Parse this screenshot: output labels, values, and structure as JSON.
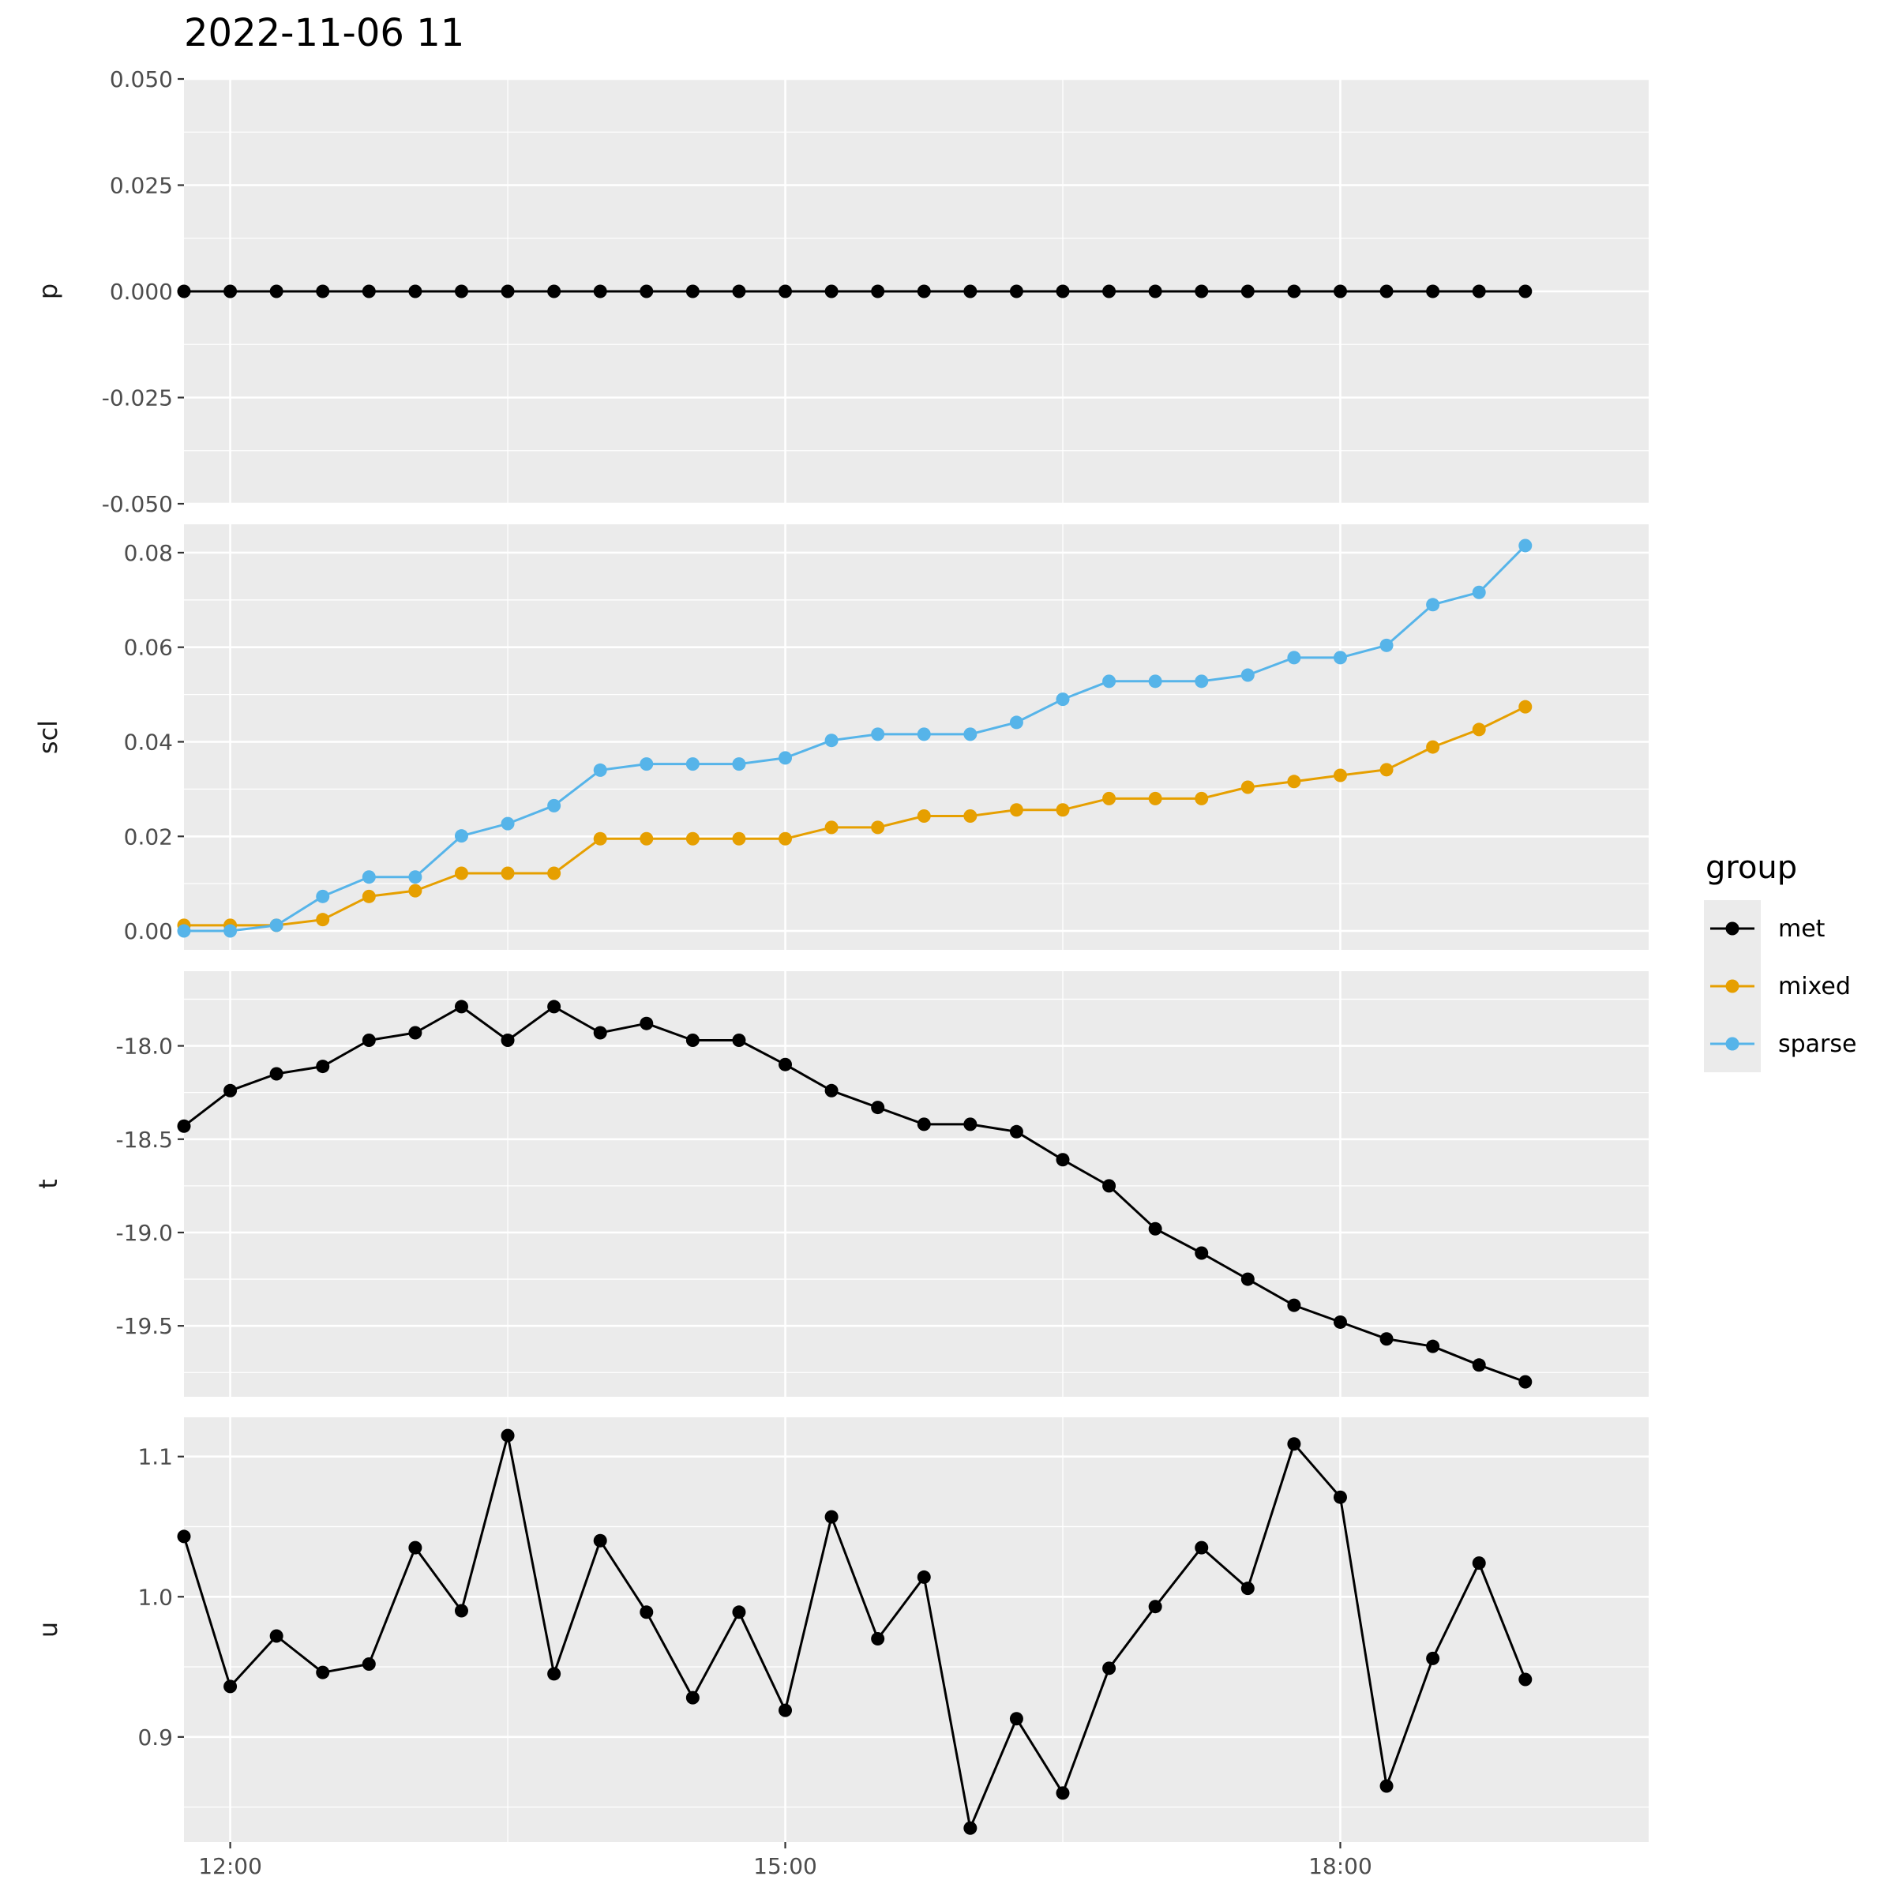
{
  "chart_data": {
    "type": "line",
    "title": "2022-11-06 11",
    "x_axis": {
      "unit": "time",
      "range": [
        "11:45",
        "19:40"
      ],
      "ticks": [
        "12:00",
        "15:00",
        "18:00"
      ]
    },
    "x": [
      "11:45",
      "12:00",
      "12:15",
      "12:30",
      "12:45",
      "13:00",
      "13:15",
      "13:30",
      "13:45",
      "14:00",
      "14:15",
      "14:30",
      "14:45",
      "15:00",
      "15:15",
      "15:30",
      "15:45",
      "16:00",
      "16:15",
      "16:30",
      "16:45",
      "17:00",
      "17:15",
      "17:30",
      "17:45",
      "18:00",
      "18:15",
      "18:30",
      "18:45",
      "19:00"
    ],
    "legend": {
      "title": "group",
      "position": "right",
      "entries": [
        {
          "name": "met",
          "color": "#000000"
        },
        {
          "name": "mixed",
          "color": "#E69F00"
        },
        {
          "name": "sparse",
          "color": "#56B4E9"
        }
      ]
    },
    "grid": true,
    "facets": [
      {
        "label": "p",
        "ylim": [
          -0.05,
          0.05
        ],
        "yticks": [
          "-0.050",
          "-0.025",
          "0.000",
          "0.025",
          "0.050"
        ],
        "series": [
          {
            "name": "met",
            "values": [
              0,
              0,
              0,
              0,
              0,
              0,
              0,
              0,
              0,
              0,
              0,
              0,
              0,
              0,
              0,
              0,
              0,
              0,
              0,
              0,
              0,
              0,
              0,
              0,
              0,
              0,
              0,
              0,
              0,
              0
            ]
          }
        ]
      },
      {
        "label": "scl",
        "ylim": [
          -0.004,
          0.086
        ],
        "yticks": [
          "0.00",
          "0.02",
          "0.04",
          "0.06",
          "0.08"
        ],
        "series": [
          {
            "name": "mixed",
            "values": [
              0.0012,
              0.0012,
              0.0012,
              0.0024,
              0.0073,
              0.0085,
              0.0122,
              0.0122,
              0.0122,
              0.0195,
              0.0195,
              0.0195,
              0.0195,
              0.0195,
              0.0219,
              0.0219,
              0.0243,
              0.0243,
              0.0256,
              0.0256,
              0.028,
              0.028,
              0.028,
              0.0304,
              0.0316,
              0.0329,
              0.0341,
              0.0389,
              0.0426,
              0.0474
            ]
          },
          {
            "name": "sparse",
            "values": [
              0.0,
              0.0,
              0.0012,
              0.0073,
              0.0114,
              0.0114,
              0.0201,
              0.0227,
              0.0265,
              0.034,
              0.0353,
              0.0353,
              0.0353,
              0.0366,
              0.0403,
              0.0416,
              0.0416,
              0.0416,
              0.0441,
              0.049,
              0.0528,
              0.0528,
              0.0528,
              0.0541,
              0.0578,
              0.0578,
              0.0604,
              0.069,
              0.0716,
              0.0815
            ]
          }
        ]
      },
      {
        "label": "t",
        "ylim": [
          -19.88,
          -17.6
        ],
        "yticks": [
          "-19.5",
          "-19.0",
          "-18.5",
          "-18.0"
        ],
        "series": [
          {
            "name": "met",
            "values": [
              -18.43,
              -18.24,
              -18.15,
              -18.11,
              -17.97,
              -17.93,
              -17.79,
              -17.97,
              -17.79,
              -17.93,
              -17.88,
              -17.97,
              -17.97,
              -18.1,
              -18.24,
              -18.33,
              -18.42,
              -18.42,
              -18.46,
              -18.61,
              -18.75,
              -18.98,
              -19.11,
              -19.25,
              -19.39,
              -19.48,
              -19.57,
              -19.61,
              -19.71,
              -19.8
            ]
          }
        ]
      },
      {
        "label": "u",
        "ylim": [
          0.825,
          1.128
        ],
        "yticks": [
          "0.9",
          "1.0",
          "1.1"
        ],
        "series": [
          {
            "name": "met",
            "values": [
              1.043,
              0.936,
              0.972,
              0.946,
              0.952,
              1.035,
              0.99,
              1.115,
              0.945,
              1.04,
              0.989,
              0.928,
              0.989,
              0.919,
              1.057,
              0.97,
              1.014,
              0.835,
              0.913,
              0.86,
              0.949,
              0.993,
              1.035,
              1.006,
              1.109,
              1.071,
              0.865,
              0.956,
              1.024,
              0.941
            ]
          }
        ]
      }
    ]
  }
}
